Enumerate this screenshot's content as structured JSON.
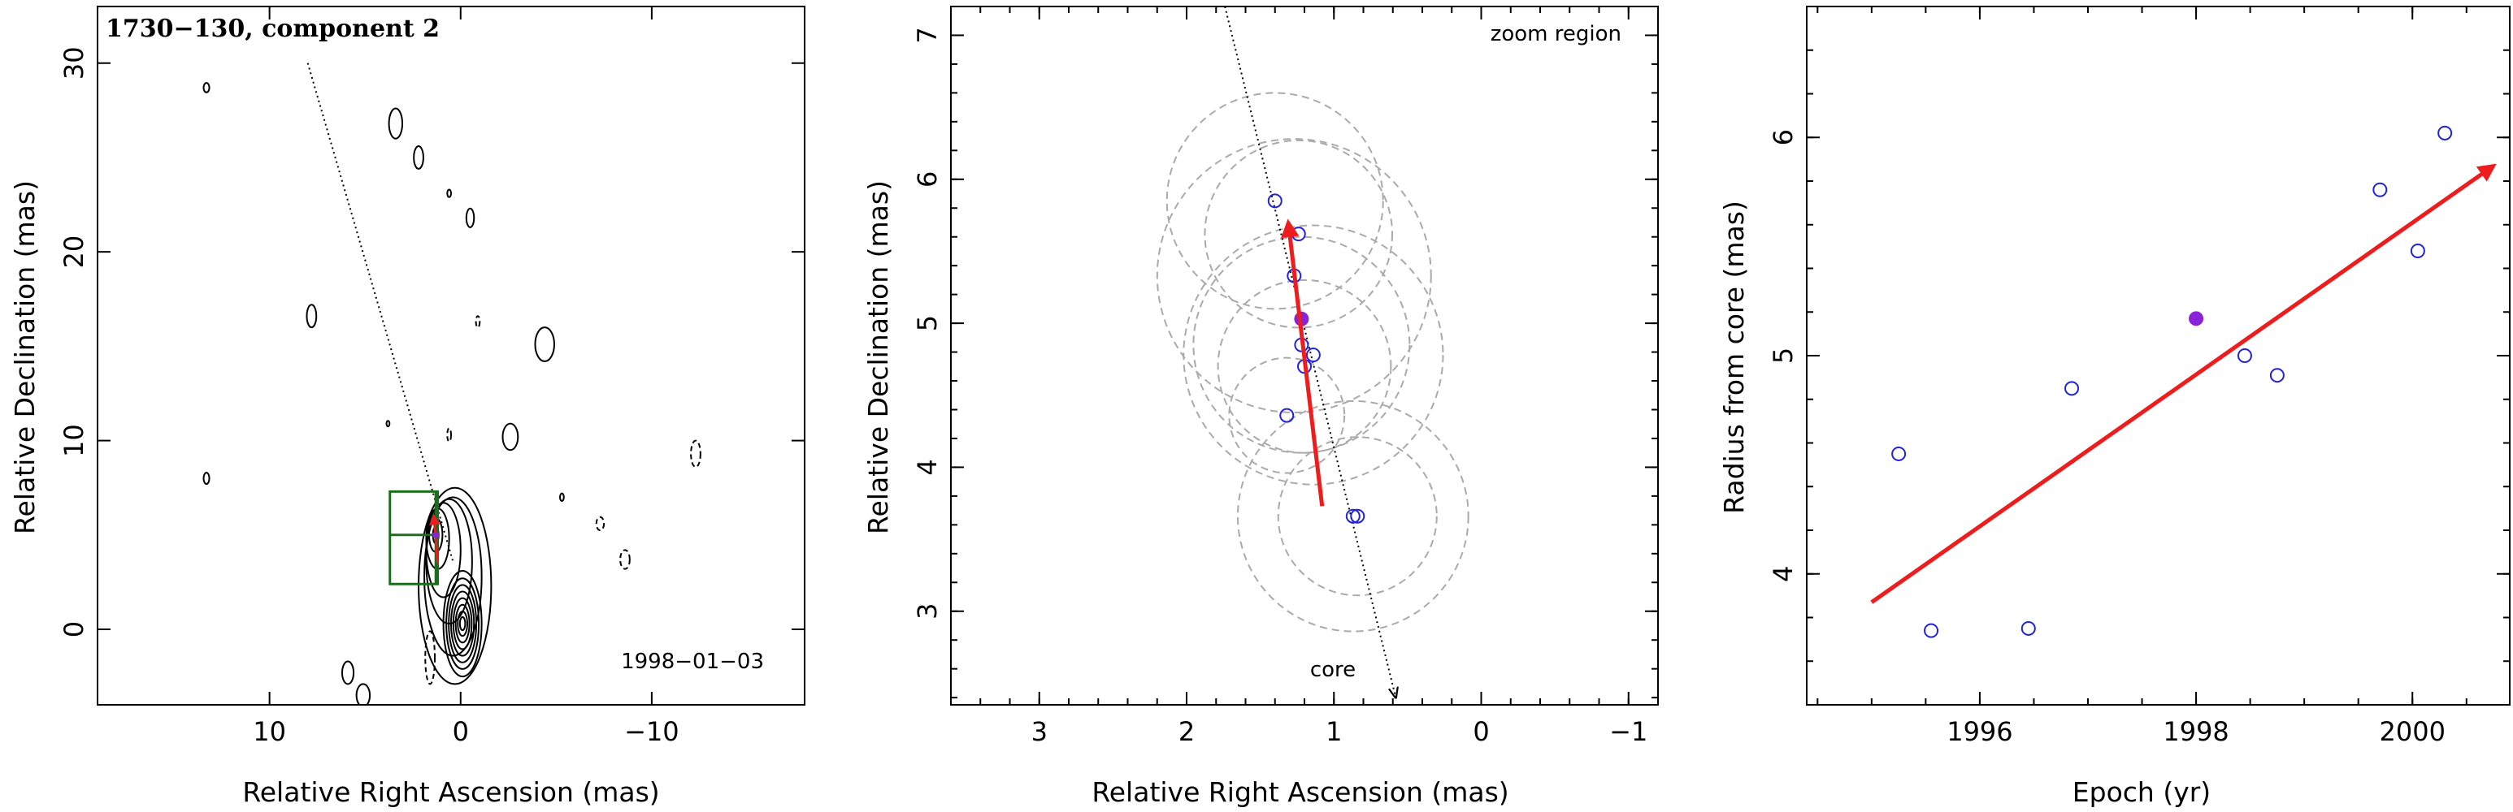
{
  "chart_data": [
    {
      "type": "contour",
      "title": "1730−130, component 2",
      "date_label": "1998−01−03",
      "xlabel": "Relative Right Ascension (mas)",
      "ylabel": "Relative Declination (mas)",
      "xlim": [
        19,
        -18
      ],
      "ylim": [
        -4,
        33
      ],
      "xticks": [
        10,
        0,
        -10
      ],
      "xtick_labels": [
        "10",
        "0",
        "−10"
      ],
      "yticks": [
        0,
        10,
        20,
        30
      ],
      "ytick_labels": [
        "0",
        "10",
        "20",
        "30"
      ],
      "core_position": [
        0,
        0
      ],
      "component_position": [
        1.3,
        5.0
      ],
      "motion_vector": {
        "from": [
          1.2,
          3.5
        ],
        "to": [
          1.4,
          6.0
        ]
      },
      "trajectory_line": {
        "from": [
          8.0,
          30.0
        ],
        "to": [
          0.4,
          3.6
        ]
      },
      "zoom_box": {
        "x": [
          1.2,
          3.7
        ],
        "y": [
          2.4,
          7.3
        ]
      },
      "zoom_center": [
        1.3,
        5.0
      ],
      "contour_blobs": [
        {
          "x": 13.3,
          "y": 28.7,
          "rx": 0.15,
          "ry": 0.25,
          "dashed": false
        },
        {
          "x": 3.4,
          "y": 26.8,
          "rx": 0.35,
          "ry": 0.8,
          "dashed": false
        },
        {
          "x": 2.2,
          "y": 25.0,
          "rx": 0.25,
          "ry": 0.6,
          "dashed": false
        },
        {
          "x": 0.6,
          "y": 23.1,
          "rx": 0.1,
          "ry": 0.2,
          "dashed": false
        },
        {
          "x": -0.5,
          "y": 21.8,
          "rx": 0.2,
          "ry": 0.5,
          "dashed": false
        },
        {
          "x": 7.8,
          "y": 16.6,
          "rx": 0.25,
          "ry": 0.6,
          "dashed": false
        },
        {
          "x": -0.9,
          "y": 16.3,
          "rx": 0.1,
          "ry": 0.3,
          "dashed": true
        },
        {
          "x": -4.4,
          "y": 15.1,
          "rx": 0.5,
          "ry": 0.9,
          "dashed": false
        },
        {
          "x": -2.6,
          "y": 10.2,
          "rx": 0.4,
          "ry": 0.7,
          "dashed": false
        },
        {
          "x": 0.6,
          "y": 10.3,
          "rx": 0.1,
          "ry": 0.35,
          "dashed": true
        },
        {
          "x": 3.8,
          "y": 10.9,
          "rx": 0.08,
          "ry": 0.15,
          "dashed": false
        },
        {
          "x": -12.3,
          "y": 9.3,
          "rx": 0.25,
          "ry": 0.7,
          "dashed": true
        },
        {
          "x": 13.3,
          "y": 8.0,
          "rx": 0.15,
          "ry": 0.3,
          "dashed": false
        },
        {
          "x": -5.3,
          "y": 7.0,
          "rx": 0.1,
          "ry": 0.2,
          "dashed": false
        },
        {
          "x": -7.3,
          "y": 5.6,
          "rx": 0.2,
          "ry": 0.35,
          "dashed": true
        },
        {
          "x": -8.6,
          "y": 3.7,
          "rx": 0.25,
          "ry": 0.5,
          "dashed": true
        },
        {
          "x": 5.9,
          "y": -2.3,
          "rx": 0.3,
          "ry": 0.6,
          "dashed": false
        },
        {
          "x": 5.1,
          "y": -3.5,
          "rx": 0.35,
          "ry": 0.6,
          "dashed": false
        },
        {
          "x": 1.6,
          "y": -1.5,
          "rx": 0.25,
          "ry": 1.4,
          "dashed": true
        }
      ],
      "core_contours": [
        {
          "cx": -0.1,
          "cy": 0.3,
          "rx": 1.0,
          "ry": 2.8
        },
        {
          "cx": -0.1,
          "cy": 0.3,
          "rx": 0.85,
          "ry": 2.4
        },
        {
          "cx": -0.1,
          "cy": 0.3,
          "rx": 0.72,
          "ry": 2.05
        },
        {
          "cx": -0.1,
          "cy": 0.3,
          "rx": 0.6,
          "ry": 1.7
        },
        {
          "cx": -0.1,
          "cy": 0.3,
          "rx": 0.48,
          "ry": 1.35
        },
        {
          "cx": -0.1,
          "cy": 0.3,
          "rx": 0.36,
          "ry": 1.0
        },
        {
          "cx": -0.1,
          "cy": 0.3,
          "rx": 0.25,
          "ry": 0.65
        },
        {
          "cx": -0.1,
          "cy": 0.3,
          "rx": 0.14,
          "ry": 0.35
        },
        {
          "cx": 0.3,
          "cy": 2.3,
          "rx": 1.9,
          "ry": 5.2
        },
        {
          "cx": 0.4,
          "cy": 2.8,
          "rx": 1.5,
          "ry": 4.2
        },
        {
          "cx": 0.6,
          "cy": 3.6,
          "rx": 1.2,
          "ry": 3.3
        },
        {
          "cx": 0.9,
          "cy": 4.2,
          "rx": 0.9,
          "ry": 2.5
        },
        {
          "cx": 1.2,
          "cy": 4.8,
          "rx": 0.6,
          "ry": 1.6
        },
        {
          "cx": 1.3,
          "cy": 5.0,
          "rx": 0.35,
          "ry": 0.9
        },
        {
          "cx": 1.3,
          "cy": 5.0,
          "rx": 0.15,
          "ry": 0.45
        }
      ]
    },
    {
      "type": "scatter",
      "annotation": "zoom region",
      "xlabel": "Relative Right Ascension (mas)",
      "ylabel": "Relative Declination (mas)",
      "xlim": [
        3.6,
        -1.2
      ],
      "ylim": [
        2.35,
        7.2
      ],
      "xticks": [
        3,
        2,
        1,
        0,
        -1
      ],
      "xtick_labels": [
        "3",
        "2",
        "1",
        "0",
        "−1"
      ],
      "yticks": [
        3,
        4,
        5,
        6,
        7
      ],
      "ytick_labels": [
        "3",
        "4",
        "5",
        "6",
        "7"
      ],
      "open_points": [
        {
          "x": 1.4,
          "y": 5.85
        },
        {
          "x": 1.24,
          "y": 5.62
        },
        {
          "x": 1.27,
          "y": 5.33
        },
        {
          "x": 1.22,
          "y": 4.85
        },
        {
          "x": 1.14,
          "y": 4.78
        },
        {
          "x": 1.2,
          "y": 4.7
        },
        {
          "x": 1.32,
          "y": 4.36
        },
        {
          "x": 0.87,
          "y": 3.66
        },
        {
          "x": 0.84,
          "y": 3.66
        }
      ],
      "highlighted_point": {
        "x": 1.22,
        "y": 5.03
      },
      "error_circles": [
        {
          "x": 1.4,
          "y": 5.85,
          "r": 0.75
        },
        {
          "x": 1.24,
          "y": 5.62,
          "r": 0.65
        },
        {
          "x": 1.27,
          "y": 5.33,
          "r": 0.95
        },
        {
          "x": 1.22,
          "y": 4.85,
          "r": 0.75
        },
        {
          "x": 1.14,
          "y": 4.78,
          "r": 0.9
        },
        {
          "x": 1.2,
          "y": 4.7,
          "r": 0.6
        },
        {
          "x": 1.32,
          "y": 4.36,
          "r": 0.4
        },
        {
          "x": 0.87,
          "y": 3.66,
          "r": 0.8
        },
        {
          "x": 0.84,
          "y": 3.66,
          "r": 0.55
        }
      ],
      "motion_vector": {
        "from": [
          1.08,
          3.73
        ],
        "to": [
          1.31,
          5.7
        ]
      },
      "trajectory_line": {
        "from": [
          1.74,
          7.2
        ],
        "to": [
          0.58,
          2.4
        ]
      },
      "core_label": "core"
    },
    {
      "type": "scatter",
      "xlabel": "Epoch (yr)",
      "ylabel": "Radius from core (mas)",
      "xlim": [
        1994.4,
        2000.9
      ],
      "ylim": [
        3.4,
        6.6
      ],
      "xticks": [
        1996,
        1998,
        2000
      ],
      "xtick_labels": [
        "1996",
        "1998",
        "2000"
      ],
      "yticks": [
        4,
        5,
        6
      ],
      "ytick_labels": [
        "4",
        "5",
        "6"
      ],
      "open_points": [
        {
          "x": 1995.25,
          "y": 4.55
        },
        {
          "x": 1995.55,
          "y": 3.74
        },
        {
          "x": 1996.45,
          "y": 3.75
        },
        {
          "x": 1996.85,
          "y": 4.85
        },
        {
          "x": 1998.45,
          "y": 5.0
        },
        {
          "x": 1998.75,
          "y": 4.91
        },
        {
          "x": 1999.7,
          "y": 5.76
        },
        {
          "x": 2000.05,
          "y": 5.48
        },
        {
          "x": 2000.3,
          "y": 6.02
        }
      ],
      "highlighted_point": {
        "x": 1998.0,
        "y": 5.17
      },
      "fit_vector": {
        "from": [
          1995.0,
          3.87
        ],
        "to": [
          2000.75,
          5.87
        ]
      }
    }
  ],
  "colors": {
    "axis": "#000000",
    "contour": "#000000",
    "vector": "#ee1c1c",
    "point": "#2222dd",
    "highlight": "#8a22d8",
    "circle": "#aaaaaa",
    "zoom_box": "#1b6e1b"
  }
}
